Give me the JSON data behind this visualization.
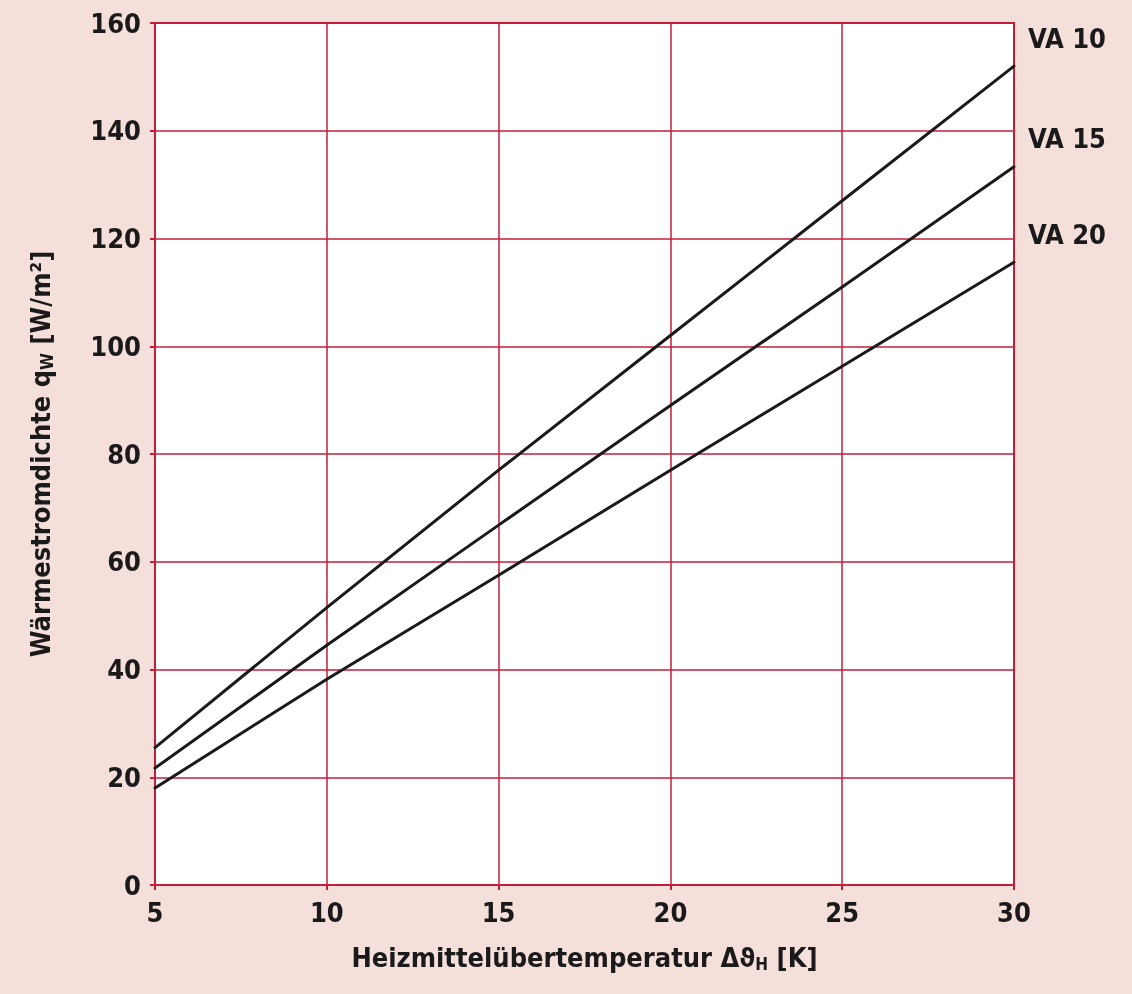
{
  "chart_data": {
    "type": "line",
    "xlabel": "Heizmittelübertemperatur Δϑ$_{H}$ [K]",
    "ylabel": "Wärmestromdichte q$_{W}$ [W/m²]",
    "x": [
      5,
      10,
      15,
      20,
      25,
      30
    ],
    "series": [
      {
        "name": "VA 10",
        "color": "#1a1a1a",
        "values": [
          25.5,
          51.5,
          77,
          102,
          127,
          152
        ]
      },
      {
        "name": "VA 15",
        "color": "#1a1a1a",
        "values": [
          21.7,
          44.5,
          66.8,
          89,
          111,
          133.3
        ]
      },
      {
        "name": "VA 20",
        "color": "#1a1a1a",
        "values": [
          18,
          38.2,
          57.5,
          77,
          96.3,
          115.6
        ]
      }
    ],
    "xlim": [
      5,
      30
    ],
    "xticks": [
      5,
      10,
      15,
      20,
      25,
      30
    ],
    "ylim": [
      0,
      160
    ],
    "yticks": [
      0,
      20,
      40,
      60,
      80,
      100,
      120,
      140,
      160
    ],
    "grid": true,
    "marker": "none",
    "line_style": "solid"
  }
}
